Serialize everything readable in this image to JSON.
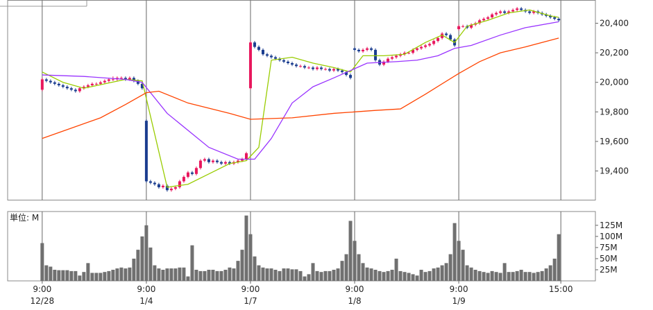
{
  "chart_data": [
    {
      "type": "candlestick",
      "up_color": "#e8175d",
      "down_color": "#1b3d8f",
      "x": [
        0,
        1,
        2,
        3,
        4,
        5,
        6,
        7,
        8,
        9,
        10,
        11,
        12,
        13,
        14,
        15,
        16,
        17,
        18,
        19,
        20,
        21,
        22,
        23,
        24,
        25,
        26,
        27,
        28,
        29,
        30,
        31,
        32,
        33,
        34,
        35,
        36,
        37,
        38,
        39,
        40,
        41,
        42,
        43,
        44,
        45,
        46,
        47,
        48,
        49,
        50,
        51,
        52,
        53,
        54,
        55,
        56,
        57,
        58,
        59,
        60,
        61,
        62,
        63,
        64,
        65,
        66,
        67,
        68,
        69,
        70,
        71,
        72,
        73,
        74,
        75,
        76,
        77,
        78,
        79,
        80,
        81,
        82,
        83,
        84,
        85,
        86,
        87,
        88,
        89,
        90,
        91,
        92,
        93,
        94,
        95,
        96,
        97,
        98,
        99,
        100,
        101,
        102,
        103,
        104,
        105,
        106,
        107,
        108,
        109,
        110,
        111,
        112,
        113,
        114,
        115,
        116,
        117,
        118,
        119,
        120,
        121,
        122,
        123,
        124
      ],
      "open": [
        19950,
        20020,
        20010,
        20000,
        19990,
        19980,
        19970,
        19960,
        19950,
        19940,
        19960,
        19970,
        19980,
        19990,
        19990,
        20000,
        20010,
        20020,
        20020,
        20030,
        20030,
        20020,
        20030,
        20010,
        19990,
        19740,
        19330,
        19320,
        19310,
        19290,
        19300,
        19270,
        19280,
        19290,
        19330,
        19360,
        19390,
        19380,
        19420,
        19470,
        19480,
        19460,
        19470,
        19460,
        19450,
        19460,
        19450,
        19460,
        19470,
        19480,
        19960,
        20270,
        20240,
        20220,
        20190,
        20180,
        20170,
        20160,
        20150,
        20140,
        20130,
        20120,
        20110,
        20110,
        20100,
        20100,
        20090,
        20100,
        20090,
        20090,
        20080,
        20090,
        20080,
        20070,
        20050,
        20230,
        20220,
        20210,
        20220,
        20230,
        20220,
        20150,
        20120,
        20140,
        20160,
        20170,
        20180,
        20190,
        20200,
        20200,
        20220,
        20230,
        20240,
        20250,
        20260,
        20280,
        20300,
        20330,
        20320,
        20290,
        20360,
        20380,
        20380,
        20370,
        20390,
        20400,
        20420,
        20430,
        20440,
        20460,
        20470,
        20480,
        20470,
        20480,
        20490,
        20500,
        20490,
        20480,
        20470,
        20480,
        20470,
        20460,
        20450,
        20440,
        20430
      ],
      "high": [
        20030,
        20030,
        20020,
        20010,
        20000,
        19990,
        19980,
        19970,
        19960,
        19970,
        19980,
        19990,
        20000,
        20000,
        20010,
        20020,
        20030,
        20040,
        20040,
        20040,
        20040,
        20040,
        20040,
        20020,
        20000,
        19750,
        19340,
        19330,
        19320,
        19310,
        19310,
        19290,
        19300,
        19340,
        19370,
        19400,
        19400,
        19430,
        19480,
        19490,
        19490,
        19480,
        19480,
        19470,
        19470,
        19470,
        19470,
        19480,
        19490,
        19530,
        20280,
        20280,
        20250,
        20230,
        20200,
        20190,
        20180,
        20170,
        20160,
        20150,
        20140,
        20130,
        20120,
        20120,
        20110,
        20110,
        20110,
        20110,
        20100,
        20100,
        20100,
        20100,
        20090,
        20080,
        20060,
        20240,
        20230,
        20230,
        20240,
        20240,
        20230,
        20160,
        20150,
        20170,
        20180,
        20190,
        20200,
        20210,
        20210,
        20230,
        20240,
        20250,
        20260,
        20270,
        20290,
        20310,
        20340,
        20340,
        20330,
        20300,
        20390,
        20390,
        20390,
        20400,
        20410,
        20430,
        20440,
        20450,
        20470,
        20480,
        20490,
        20490,
        20490,
        20500,
        20510,
        20510,
        20500,
        20490,
        20490,
        20490,
        20480,
        20470,
        20460,
        20450,
        20440
      ],
      "low": [
        19940,
        20000,
        19990,
        19980,
        19970,
        19960,
        19950,
        19940,
        19930,
        19930,
        19950,
        19960,
        19970,
        19980,
        19980,
        19990,
        20000,
        20010,
        20010,
        20020,
        20010,
        20010,
        20000,
        19980,
        19950,
        19320,
        19310,
        19300,
        19280,
        19280,
        19260,
        19260,
        19270,
        19280,
        19320,
        19350,
        19370,
        19370,
        19410,
        19460,
        19450,
        19450,
        19450,
        19440,
        19440,
        19440,
        19440,
        19450,
        19460,
        19470,
        19950,
        20230,
        20210,
        20180,
        20170,
        20160,
        20150,
        20140,
        20130,
        20120,
        20110,
        20100,
        20100,
        20090,
        20090,
        20080,
        20080,
        20080,
        20080,
        20070,
        20070,
        20070,
        20060,
        20040,
        20020,
        20210,
        20200,
        20200,
        20210,
        20210,
        20140,
        20110,
        20110,
        20130,
        20150,
        20160,
        20170,
        20180,
        20190,
        20190,
        20210,
        20220,
        20230,
        20240,
        20250,
        20270,
        20290,
        20310,
        20280,
        20240,
        20350,
        20370,
        20360,
        20360,
        20380,
        20390,
        20410,
        20420,
        20430,
        20450,
        20460,
        20460,
        20460,
        20470,
        20480,
        20480,
        20470,
        20460,
        20460,
        20460,
        20450,
        20440,
        20430,
        20420,
        20410
      ],
      "close": [
        20020,
        20010,
        20000,
        19990,
        19980,
        19970,
        19960,
        19950,
        19940,
        19960,
        19970,
        19980,
        19990,
        19990,
        20000,
        20010,
        20020,
        20020,
        20030,
        20030,
        20020,
        20030,
        20010,
        19990,
        19960,
        19330,
        19320,
        19310,
        19290,
        19300,
        19270,
        19280,
        19290,
        19330,
        19360,
        19390,
        19380,
        19420,
        19470,
        19480,
        19460,
        19470,
        19460,
        19450,
        19460,
        19450,
        19460,
        19470,
        19480,
        19520,
        20270,
        20240,
        20220,
        20190,
        20180,
        20170,
        20160,
        20150,
        20140,
        20130,
        20120,
        20110,
        20110,
        20100,
        20100,
        20090,
        20100,
        20090,
        20090,
        20080,
        20090,
        20080,
        20070,
        20050,
        20030,
        20220,
        20210,
        20220,
        20230,
        20220,
        20150,
        20120,
        20140,
        20160,
        20170,
        20180,
        20190,
        20200,
        20200,
        20220,
        20230,
        20240,
        20250,
        20260,
        20280,
        20300,
        20330,
        20320,
        20290,
        20250,
        20380,
        20380,
        20370,
        20390,
        20400,
        20420,
        20430,
        20440,
        20460,
        20470,
        20480,
        20470,
        20480,
        20490,
        20500,
        20490,
        20480,
        20470,
        20480,
        20470,
        20460,
        20450,
        20440,
        20430,
        20420
      ],
      "lines": [
        {
          "color": "#99cc00",
          "x": [
            0,
            5,
            10,
            15,
            20,
            24,
            30,
            35,
            40,
            45,
            49,
            52,
            55,
            60,
            65,
            70,
            74,
            77,
            82,
            87,
            92,
            96,
            99,
            102,
            107,
            112,
            117,
            122,
            124
          ],
          "values": [
            20070,
            20000,
            19960,
            19990,
            20020,
            20010,
            19290,
            19310,
            19380,
            19450,
            19470,
            19560,
            20150,
            20170,
            20130,
            20100,
            20070,
            20180,
            20180,
            20190,
            20270,
            20320,
            20270,
            20380,
            20420,
            20470,
            20490,
            20450,
            20440
          ]
        },
        {
          "color": "#9933ff",
          "x": [
            0,
            10,
            20,
            24,
            30,
            40,
            47,
            51,
            55,
            60,
            65,
            70,
            74,
            78,
            85,
            90,
            95,
            99,
            103,
            110,
            116,
            124
          ],
          "values": [
            20050,
            20040,
            20020,
            20000,
            19790,
            19560,
            19480,
            19480,
            19620,
            19860,
            19970,
            20030,
            20080,
            20130,
            20140,
            20150,
            20180,
            20230,
            20250,
            20320,
            20370,
            20410
          ]
        },
        {
          "color": "#ff4400",
          "x": [
            0,
            8,
            14,
            20,
            25,
            28,
            35,
            45,
            50,
            60,
            70,
            80,
            86,
            92,
            100,
            105,
            110,
            116,
            124
          ],
          "values": [
            19620,
            19700,
            19760,
            19850,
            19930,
            19940,
            19860,
            19790,
            19750,
            19760,
            19790,
            19810,
            19820,
            19920,
            20060,
            20140,
            20200,
            20240,
            20300
          ]
        }
      ],
      "xlim": [
        -8.3,
        132.8
      ],
      "ylim": [
        19203,
        20555
      ],
      "yticks": [
        {
          "value": 19400,
          "label": "19,400"
        },
        {
          "value": 19600,
          "label": "19,600"
        },
        {
          "value": 19800,
          "label": "19,800"
        },
        {
          "value": 20000,
          "label": "20,000"
        },
        {
          "value": 20200,
          "label": "20,200"
        },
        {
          "value": 20400,
          "label": "20,400"
        }
      ],
      "grid": "x"
    },
    {
      "type": "bar",
      "unit_label": "単位: M",
      "color": "#707070",
      "values": [
        85,
        35,
        32,
        25,
        24,
        24,
        24,
        22,
        22,
        12,
        20,
        40,
        18,
        18,
        18,
        20,
        22,
        25,
        28,
        30,
        28,
        30,
        50,
        70,
        100,
        125,
        75,
        35,
        28,
        25,
        28,
        28,
        28,
        30,
        30,
        10,
        80,
        25,
        22,
        22,
        25,
        25,
        22,
        22,
        25,
        30,
        28,
        45,
        70,
        147,
        105,
        55,
        35,
        30,
        28,
        28,
        25,
        22,
        28,
        28,
        26,
        26,
        22,
        10,
        15,
        40,
        22,
        20,
        22,
        22,
        25,
        28,
        45,
        60,
        135,
        90,
        60,
        40,
        30,
        28,
        25,
        22,
        20,
        22,
        25,
        50,
        22,
        20,
        18,
        15,
        12,
        25,
        20,
        22,
        28,
        30,
        35,
        40,
        60,
        130,
        90,
        70,
        35,
        30,
        25,
        22,
        20,
        18,
        22,
        20,
        18,
        40,
        20,
        20,
        22,
        25,
        20,
        20,
        18,
        20,
        22,
        28,
        35,
        50,
        105
      ],
      "ylim": [
        0,
        156
      ],
      "yticks": [
        {
          "value": 25,
          "label": "25M"
        },
        {
          "value": 50,
          "label": "50M"
        },
        {
          "value": 75,
          "label": "75M"
        },
        {
          "value": 100,
          "label": "100M"
        },
        {
          "value": 125,
          "label": "125M"
        }
      ],
      "xticks": [
        {
          "value": 0,
          "label": "9:00",
          "date": "12/28"
        },
        {
          "value": 25,
          "label": "9:00",
          "date": "1/4"
        },
        {
          "value": 50,
          "label": "9:00",
          "date": "1/7"
        },
        {
          "value": 75,
          "label": "9:00",
          "date": "1/8"
        },
        {
          "value": 100,
          "label": "9:00",
          "date": "1/9"
        },
        {
          "value": 124.5,
          "label": "15:00"
        }
      ],
      "grid": "x"
    }
  ]
}
